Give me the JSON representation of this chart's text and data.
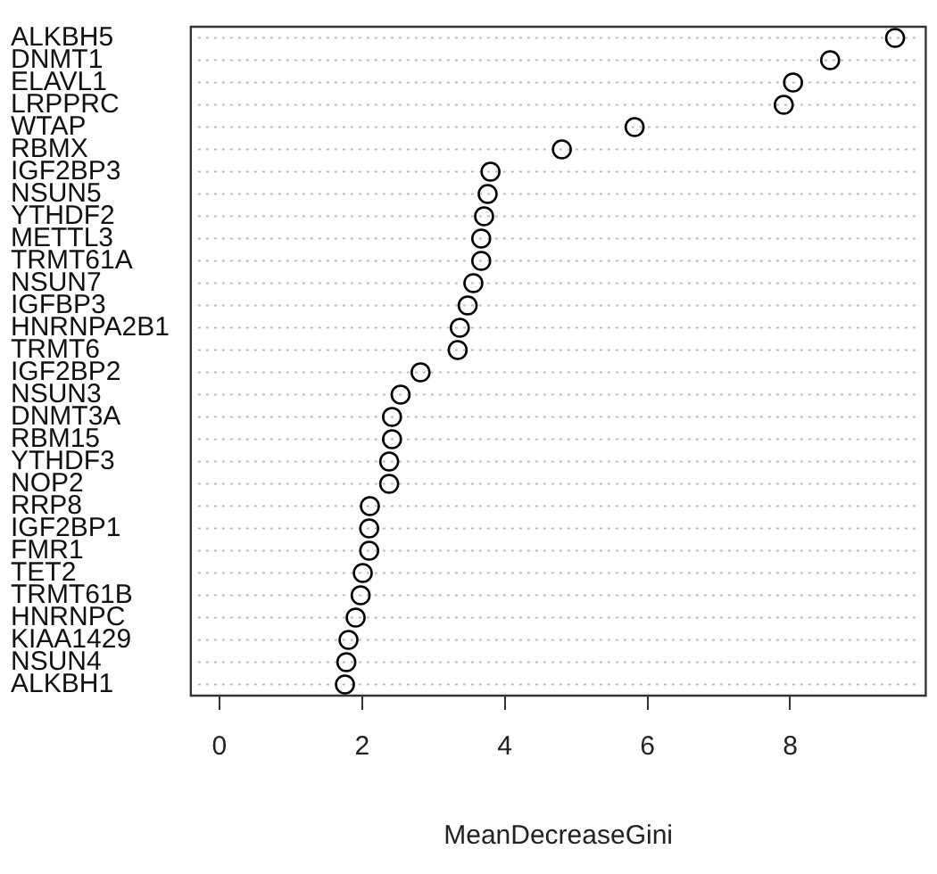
{
  "chart_data": {
    "type": "scatter",
    "orientation": "horizontal",
    "xlabel": "MeanDecreaseGini",
    "categories": [
      "ALKBH5",
      "DNMT1",
      "ELAVL1",
      "LRPPRC",
      "WTAP",
      "RBMX",
      "IGF2BP3",
      "NSUN5",
      "YTHDF2",
      "METTL3",
      "TRMT61A",
      "NSUN7",
      "IGFBP3",
      "HNRNPA2B1",
      "TRMT6",
      "IGF2BP2",
      "NSUN3",
      "DNMT3A",
      "RBM15",
      "YTHDF3",
      "NOP2",
      "RRP8",
      "IGF2BP1",
      "FMR1",
      "TET2",
      "TRMT61B",
      "HNRNPC",
      "KIAA1429",
      "NSUN4",
      "ALKBH1"
    ],
    "values": [
      9.47,
      8.56,
      8.04,
      7.91,
      5.82,
      4.8,
      3.8,
      3.76,
      3.71,
      3.67,
      3.67,
      3.56,
      3.48,
      3.37,
      3.34,
      2.82,
      2.54,
      2.42,
      2.42,
      2.38,
      2.38,
      2.11,
      2.1,
      2.1,
      2.01,
      1.98,
      1.91,
      1.81,
      1.78,
      1.76
    ],
    "color": "#000000",
    "marker": "circle",
    "grid": "y",
    "legend": false,
    "xlim": [
      -0.4,
      9.9
    ],
    "xticks": [
      0,
      2,
      4,
      6,
      8
    ]
  }
}
